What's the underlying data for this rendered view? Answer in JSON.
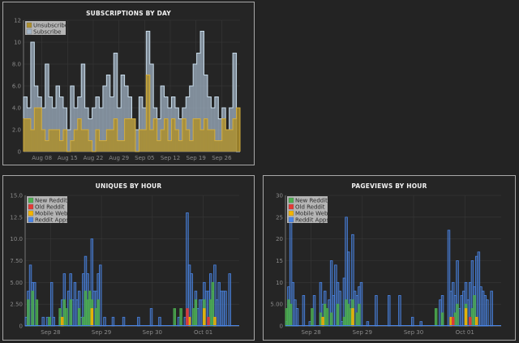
{
  "charts": {
    "subscriptions": {
      "title": "SUBSCRIPTIONS BY DAY"
    },
    "uniques": {
      "title": "UNIQUES BY HOUR"
    },
    "pageviews": {
      "title": "PAGEVIEWS BY HOUR"
    }
  },
  "colors": {
    "subscribe": "#a4b6c8",
    "unsubscribe": "#ad8f2e",
    "new_reddit": "#4caf50",
    "old_reddit": "#e53935",
    "mobile_web": "#f4b400",
    "reddit_apps": "#4a86e8",
    "grid": "#383838",
    "axis": "#8a8a8a"
  },
  "chart_data": [
    {
      "type": "area",
      "title": "SUBSCRIPTIONS BY DAY",
      "ylim": [
        0,
        12
      ],
      "yticks": [
        "0",
        "2.0",
        "4.0",
        "6.0",
        "8.0",
        "10",
        "12"
      ],
      "xticks": [
        {
          "label": "Aug 08",
          "day": 5
        },
        {
          "label": "Aug 15",
          "day": 12
        },
        {
          "label": "Aug 22",
          "day": 19
        },
        {
          "label": "Aug 29",
          "day": 26
        },
        {
          "label": "Sep 05",
          "day": 33
        },
        {
          "label": "Sep 12",
          "day": 40
        },
        {
          "label": "Sep 19",
          "day": 47
        },
        {
          "label": "Sep 26",
          "day": 54
        }
      ],
      "x_range": [
        0,
        59
      ],
      "legend": "top-left",
      "series": [
        {
          "name": "Unsubscribe",
          "values": [
            3,
            3,
            2,
            4,
            4,
            2,
            1,
            2,
            2,
            2,
            1,
            2,
            0,
            1,
            2,
            3,
            2,
            2,
            1,
            0,
            2,
            1,
            1,
            2,
            2,
            3,
            1,
            1,
            3,
            3,
            3,
            0,
            2,
            2,
            7,
            2,
            3,
            1,
            2,
            3,
            1,
            3,
            2,
            1,
            3,
            2,
            1,
            3,
            3,
            2,
            3,
            2,
            2,
            1,
            1,
            3,
            2,
            2,
            3,
            4
          ]
        },
        {
          "name": "Subscribe",
          "values": [
            5,
            4,
            10,
            6,
            5,
            4,
            8,
            5,
            4,
            6,
            5,
            4,
            2,
            6,
            4,
            5,
            8,
            4,
            3,
            4,
            5,
            4,
            6,
            7,
            5,
            9,
            4,
            7,
            6,
            5,
            3,
            2,
            5,
            4,
            11,
            8,
            4,
            3,
            6,
            5,
            4,
            5,
            4,
            3,
            4,
            5,
            6,
            8,
            9,
            11,
            7,
            5,
            4,
            5,
            3,
            4,
            2,
            4,
            9,
            0
          ]
        }
      ]
    },
    {
      "type": "bar",
      "title": "UNIQUES BY HOUR",
      "ylim": [
        0,
        15
      ],
      "yticks": [
        "0",
        "2.50",
        "5.00",
        "7.50",
        "10.0",
        "12.5",
        "15.0"
      ],
      "xticks": [
        {
          "label": "Sep 28",
          "hour": 12
        },
        {
          "label": "Sep 29",
          "hour": 36
        },
        {
          "label": "Sep 30",
          "hour": 60
        },
        {
          "label": "Oct 01",
          "hour": 84
        }
      ],
      "x_range": [
        0,
        101
      ],
      "legend": "top-left",
      "series": [
        {
          "name": "New Reddit",
          "values": [
            [
              1,
              3
            ],
            [
              3,
              4
            ],
            [
              5,
              3
            ],
            [
              11,
              1
            ],
            [
              16,
              2
            ],
            [
              18,
              3
            ],
            [
              19,
              2
            ],
            [
              21,
              3
            ],
            [
              25,
              2
            ],
            [
              27,
              1
            ],
            [
              28,
              4
            ],
            [
              29,
              3
            ],
            [
              30,
              4
            ],
            [
              31,
              3
            ],
            [
              33,
              2
            ],
            [
              34,
              3
            ],
            [
              70,
              2
            ],
            [
              73,
              2
            ],
            [
              79,
              2
            ],
            [
              80,
              3
            ],
            [
              84,
              3
            ],
            [
              87,
              3
            ],
            [
              88,
              5
            ]
          ]
        },
        {
          "name": "Old Reddit",
          "values": [
            [
              76,
              2
            ],
            [
              86,
              1
            ]
          ]
        },
        {
          "name": "Mobile Web",
          "values": [
            [
              17,
              1
            ],
            [
              31,
              2
            ],
            [
              77,
              1
            ],
            [
              84,
              2
            ],
            [
              89,
              1
            ]
          ]
        },
        {
          "name": "Reddit Apps",
          "values": [
            [
              0,
              1
            ],
            [
              1,
              4
            ],
            [
              2,
              7
            ],
            [
              3,
              5
            ],
            [
              4,
              5
            ],
            [
              8,
              1
            ],
            [
              10,
              1
            ],
            [
              12,
              5
            ],
            [
              13,
              1
            ],
            [
              16,
              1
            ],
            [
              17,
              3
            ],
            [
              18,
              6
            ],
            [
              20,
              4
            ],
            [
              21,
              6
            ],
            [
              22,
              3
            ],
            [
              23,
              5
            ],
            [
              24,
              3
            ],
            [
              25,
              4
            ],
            [
              26,
              1
            ],
            [
              27,
              6
            ],
            [
              28,
              8
            ],
            [
              29,
              6
            ],
            [
              30,
              3
            ],
            [
              31,
              10
            ],
            [
              32,
              4
            ],
            [
              33,
              4
            ],
            [
              34,
              6
            ],
            [
              35,
              7
            ],
            [
              37,
              1
            ],
            [
              41,
              1
            ],
            [
              46,
              1
            ],
            [
              53,
              1
            ],
            [
              59,
              2
            ],
            [
              63,
              1
            ],
            [
              72,
              1
            ],
            [
              75,
              1
            ],
            [
              76,
              13
            ],
            [
              77,
              7
            ],
            [
              78,
              6
            ],
            [
              80,
              4
            ],
            [
              81,
              2
            ],
            [
              82,
              3
            ],
            [
              83,
              3
            ],
            [
              84,
              5
            ],
            [
              85,
              4
            ],
            [
              86,
              4
            ],
            [
              87,
              6
            ],
            [
              88,
              4
            ],
            [
              89,
              7
            ],
            [
              90,
              3
            ],
            [
              91,
              5
            ],
            [
              92,
              4
            ],
            [
              93,
              4
            ],
            [
              94,
              4
            ],
            [
              96,
              6
            ]
          ]
        }
      ]
    },
    {
      "type": "bar",
      "title": "PAGEVIEWS BY HOUR",
      "ylim": [
        0,
        30
      ],
      "yticks": [
        "0",
        "5.00",
        "10",
        "15",
        "20",
        "25",
        "30"
      ],
      "xticks": [
        {
          "label": "Sep 28",
          "hour": 12
        },
        {
          "label": "Sep 29",
          "hour": 36
        },
        {
          "label": "Sep 30",
          "hour": 60
        },
        {
          "label": "Oct 01",
          "hour": 84
        }
      ],
      "x_range": [
        0,
        101
      ],
      "legend": "top-left",
      "series": [
        {
          "name": "New Reddit",
          "values": [
            [
              0,
              4
            ],
            [
              1,
              6
            ],
            [
              2,
              5
            ],
            [
              12,
              4
            ],
            [
              16,
              3
            ],
            [
              18,
              5
            ],
            [
              19,
              4
            ],
            [
              21,
              3
            ],
            [
              24,
              5
            ],
            [
              27,
              2
            ],
            [
              28,
              6
            ],
            [
              29,
              5
            ],
            [
              30,
              4
            ],
            [
              31,
              6
            ],
            [
              33,
              3
            ],
            [
              34,
              5
            ],
            [
              70,
              4
            ],
            [
              73,
              3
            ],
            [
              79,
              3
            ],
            [
              80,
              5
            ],
            [
              84,
              5
            ],
            [
              87,
              4
            ],
            [
              88,
              7
            ]
          ]
        },
        {
          "name": "Old Reddit",
          "values": [
            [
              78,
              2
            ],
            [
              86,
              2
            ]
          ]
        },
        {
          "name": "Mobile Web",
          "values": [
            [
              17,
              2
            ],
            [
              31,
              4
            ],
            [
              77,
              2
            ],
            [
              84,
              4
            ],
            [
              89,
              2
            ]
          ]
        },
        {
          "name": "Reddit Apps",
          "values": [
            [
              0,
              1
            ],
            [
              1,
              9
            ],
            [
              2,
              27
            ],
            [
              3,
              10
            ],
            [
              4,
              6
            ],
            [
              5,
              4
            ],
            [
              8,
              7
            ],
            [
              11,
              1
            ],
            [
              13,
              7
            ],
            [
              16,
              10
            ],
            [
              17,
              5
            ],
            [
              18,
              8
            ],
            [
              20,
              6
            ],
            [
              21,
              15
            ],
            [
              22,
              7
            ],
            [
              23,
              14
            ],
            [
              24,
              10
            ],
            [
              25,
              8
            ],
            [
              26,
              1
            ],
            [
              27,
              11
            ],
            [
              28,
              25
            ],
            [
              29,
              17
            ],
            [
              30,
              6
            ],
            [
              31,
              21
            ],
            [
              32,
              8
            ],
            [
              33,
              7
            ],
            [
              34,
              9
            ],
            [
              35,
              10
            ],
            [
              38,
              1
            ],
            [
              42,
              7
            ],
            [
              48,
              7
            ],
            [
              53,
              7
            ],
            [
              59,
              2
            ],
            [
              63,
              1
            ],
            [
              72,
              6
            ],
            [
              73,
              7
            ],
            [
              76,
              22
            ],
            [
              77,
              8
            ],
            [
              78,
              10
            ],
            [
              79,
              7
            ],
            [
              80,
              15
            ],
            [
              81,
              4
            ],
            [
              82,
              7
            ],
            [
              83,
              8
            ],
            [
              84,
              10
            ],
            [
              85,
              6
            ],
            [
              86,
              10
            ],
            [
              87,
              15
            ],
            [
              88,
              9
            ],
            [
              89,
              16
            ],
            [
              90,
              17
            ],
            [
              91,
              9
            ],
            [
              92,
              8
            ],
            [
              93,
              7
            ],
            [
              94,
              6
            ],
            [
              96,
              8
            ]
          ]
        }
      ]
    }
  ]
}
